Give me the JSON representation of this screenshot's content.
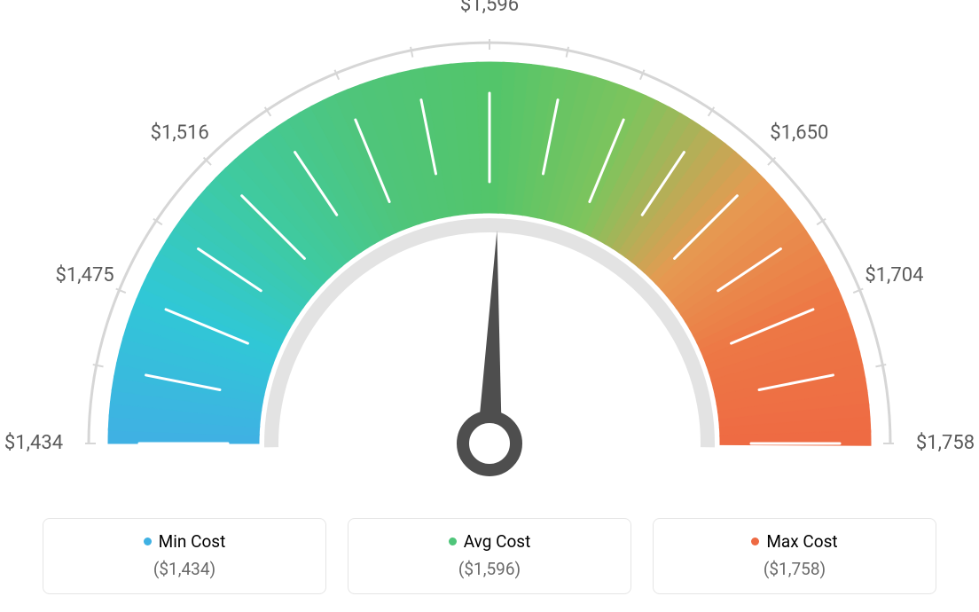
{
  "gauge": {
    "type": "gauge",
    "min_value": 1434,
    "max_value": 1758,
    "value": 1596,
    "tick_labels": [
      "$1,434",
      "$1,475",
      "$1,516",
      "",
      "$1,596",
      "",
      "$1,650",
      "$1,704",
      "$1,758"
    ],
    "gradient_colors": [
      "#3fb1e3",
      "#30c8d6",
      "#3fcaa0",
      "#4fc57a",
      "#53c56a",
      "#7fc45d",
      "#e69a52",
      "#ed7745",
      "#ee6a43"
    ],
    "arc_outer_radius": 430,
    "arc_inner_radius": 260,
    "arc_thickness": 170,
    "tick_color": "#ffffff",
    "tick_width": 3,
    "outer_ring_color": "#d6d6d6",
    "outer_ring_width": 3,
    "inner_ring_color": "#e3e3e3",
    "inner_ring_width": 16,
    "needle_color": "#4e4e4e",
    "needle_hub_stroke": "#4e4e4e",
    "needle_hub_stroke_width": 14,
    "label_color": "#5a5a5a",
    "label_fontsize": 22,
    "background_color": "#ffffff"
  },
  "legend": {
    "items": [
      {
        "label": "Min Cost",
        "value": "($1,434)",
        "color": "#3fb1e3"
      },
      {
        "label": "Avg Cost",
        "value": "($1,596)",
        "color": "#4fc57a"
      },
      {
        "label": "Max Cost",
        "value": "($1,758)",
        "color": "#ee6a43"
      }
    ]
  }
}
